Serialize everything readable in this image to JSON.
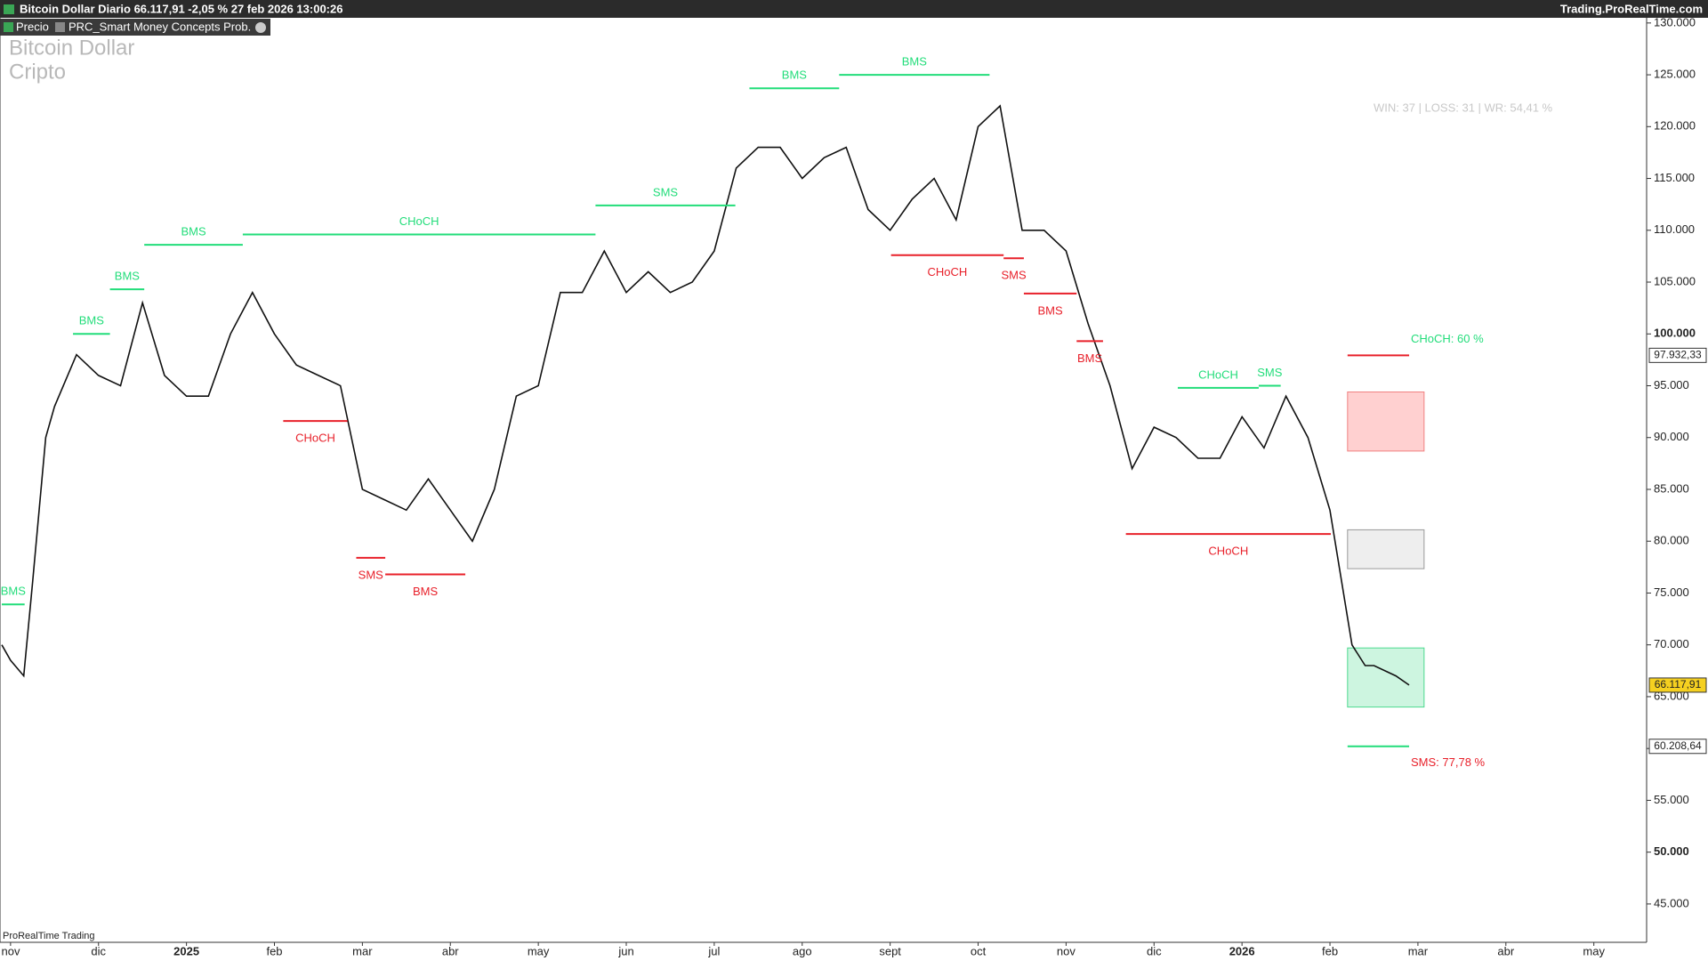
{
  "header": {
    "title": "Bitcoin Dollar Diario 66.117,91 -2,05 % 27 feb 2026 13:00:26",
    "site": "Trading.ProRealTime.com"
  },
  "indicator": "PRC_Smart Money Concepts Prob.",
  "watermark": [
    "Bitcoin Dollar",
    "Cripto"
  ],
  "stats": "WIN: 37  | LOSS: 31  | WR: 54,41 %",
  "footer": "ProRealTime Trading",
  "chart_data": {
    "type": "line",
    "xlim": [
      -0.12,
      18.6
    ],
    "ylim": [
      41300,
      130500
    ],
    "xticks": [
      {
        "value": 0,
        "label": "nov"
      },
      {
        "value": 1,
        "label": "dic"
      },
      {
        "value": 2,
        "label": "2025"
      },
      {
        "value": 3,
        "label": "feb"
      },
      {
        "value": 4,
        "label": "mar"
      },
      {
        "value": 5,
        "label": "abr"
      },
      {
        "value": 6,
        "label": "may"
      },
      {
        "value": 7,
        "label": "jun"
      },
      {
        "value": 8,
        "label": "jul"
      },
      {
        "value": 9,
        "label": "ago"
      },
      {
        "value": 10,
        "label": "sept"
      },
      {
        "value": 11,
        "label": "oct"
      },
      {
        "value": 12,
        "label": "nov"
      },
      {
        "value": 13,
        "label": "dic"
      },
      {
        "value": 14,
        "label": "2026"
      },
      {
        "value": 15,
        "label": "feb"
      },
      {
        "value": 16,
        "label": "mar"
      },
      {
        "value": 17,
        "label": "abr"
      },
      {
        "value": 18,
        "label": "may"
      }
    ],
    "yticks": [
      {
        "value": 45000,
        "label": "45.000"
      },
      {
        "value": 50000,
        "label": "50.000"
      },
      {
        "value": 55000,
        "label": "55.000"
      },
      {
        "value": 60000,
        "label": "60.000"
      },
      {
        "value": 65000,
        "label": "65.000"
      },
      {
        "value": 70000,
        "label": "70.000"
      },
      {
        "value": 75000,
        "label": "75.000"
      },
      {
        "value": 80000,
        "label": "80.000"
      },
      {
        "value": 85000,
        "label": "85.000"
      },
      {
        "value": 90000,
        "label": "90.000"
      },
      {
        "value": 95000,
        "label": "95.000"
      },
      {
        "value": 100000,
        "label": "100.000"
      },
      {
        "value": 105000,
        "label": "105.000"
      },
      {
        "value": 110000,
        "label": "110.000"
      },
      {
        "value": 115000,
        "label": "115.000"
      },
      {
        "value": 120000,
        "label": "120.000"
      },
      {
        "value": 125000,
        "label": "125.000"
      },
      {
        "value": 130000,
        "label": "130.000"
      }
    ],
    "x": [
      -0.1,
      0,
      0.15,
      0.25,
      0.4,
      0.5,
      0.75,
      1,
      1.25,
      1.5,
      1.75,
      2,
      2.25,
      2.5,
      2.75,
      3,
      3.25,
      3.5,
      3.75,
      4,
      4.25,
      4.5,
      4.75,
      5,
      5.25,
      5.5,
      5.75,
      6,
      6.25,
      6.5,
      6.75,
      7,
      7.25,
      7.5,
      7.75,
      8,
      8.25,
      8.5,
      8.75,
      9,
      9.25,
      9.5,
      9.75,
      10,
      10.25,
      10.5,
      10.75,
      11,
      11.25,
      11.5,
      11.75,
      12,
      12.25,
      12.5,
      12.75,
      13,
      13.25,
      13.5,
      13.75,
      14,
      14.25,
      14.5,
      14.75,
      15,
      15.25,
      15.4,
      15.5,
      15.75,
      15.9
    ],
    "series": [
      {
        "name": "Precio",
        "color": "#111111",
        "values": [
          70000,
          68500,
          67000,
          76000,
          90000,
          93000,
          98000,
          96000,
          95000,
          103000,
          96000,
          94000,
          94000,
          100000,
          104000,
          100000,
          97000,
          96000,
          95000,
          85000,
          84000,
          83000,
          86000,
          83000,
          80000,
          85000,
          94000,
          95000,
          104000,
          104000,
          108000,
          104000,
          106000,
          104000,
          105000,
          108000,
          116000,
          118000,
          118000,
          115000,
          117000,
          118000,
          112000,
          110000,
          113000,
          115000,
          111000,
          120000,
          122000,
          110000,
          110000,
          108000,
          101000,
          95000,
          87000,
          91000,
          90000,
          88000,
          88000,
          92000,
          89000,
          94000,
          90000,
          83000,
          70000,
          68000,
          68000,
          67000,
          66117.91
        ]
      }
    ],
    "structures": [
      {
        "label": "BMS",
        "color": "#22dd7a",
        "level": 73900,
        "from": -0.1,
        "to": 0.16
      },
      {
        "label": "BMS",
        "color": "#22dd7a",
        "level": 100000,
        "from": 0.71,
        "to": 1.13
      },
      {
        "label": "BMS",
        "color": "#22dd7a",
        "level": 104300,
        "from": 1.13,
        "to": 1.52
      },
      {
        "label": "BMS",
        "color": "#22dd7a",
        "level": 108600,
        "from": 1.52,
        "to": 2.64
      },
      {
        "label": "CHoCH",
        "color": "#22dd7a",
        "level": 109600,
        "from": 2.64,
        "to": 6.65
      },
      {
        "label": "SMS",
        "color": "#22dd7a",
        "level": 112400,
        "from": 6.65,
        "to": 8.24
      },
      {
        "label": "BMS",
        "color": "#22dd7a",
        "level": 123700,
        "from": 8.4,
        "to": 9.42
      },
      {
        "label": "BMS",
        "color": "#22dd7a",
        "level": 125000,
        "from": 9.42,
        "to": 11.13
      },
      {
        "label": "CHoCH",
        "color": "#22dd7a",
        "level": 94800,
        "from": 13.27,
        "to": 14.19
      },
      {
        "label": "SMS",
        "color": "#22dd7a",
        "level": 95000,
        "from": 14.19,
        "to": 14.44
      },
      {
        "label": "CHoCH",
        "color": "#e8202a",
        "level": 91600,
        "from": 3.1,
        "to": 3.83
      },
      {
        "label": "SMS",
        "color": "#e8202a",
        "level": 78400,
        "from": 3.93,
        "to": 4.26
      },
      {
        "label": "BMS",
        "color": "#e8202a",
        "level": 76800,
        "from": 4.26,
        "to": 5.17
      },
      {
        "label": "CHoCH",
        "color": "#e8202a",
        "level": 107600,
        "from": 10.01,
        "to": 11.29
      },
      {
        "label": "SMS",
        "color": "#e8202a",
        "level": 107300,
        "from": 11.29,
        "to": 11.52
      },
      {
        "label": "BMS",
        "color": "#e8202a",
        "level": 103900,
        "from": 11.52,
        "to": 12.12
      },
      {
        "label": "BMS",
        "color": "#e8202a",
        "level": 99300,
        "from": 12.12,
        "to": 12.42
      },
      {
        "label": "CHoCH",
        "color": "#e8202a",
        "level": 80700,
        "from": 12.68,
        "to": 15.01
      }
    ],
    "targets": [
      {
        "label": "CHoCH: 60 %",
        "line_color": "#e8202a",
        "label_color": "#22dd7a",
        "level": 97932.33,
        "from": 15.2,
        "to": 15.9
      },
      {
        "label": "SMS: 77,78 %",
        "line_color": "#22dd7a",
        "label_color": "#e8202a",
        "level": 60208.64,
        "from": 15.2,
        "to": 15.9
      }
    ],
    "boxes": [
      {
        "top": 94400,
        "bottom": 88700,
        "from": 15.2,
        "to": 16.07,
        "fill": "#ffd0d0",
        "stroke": "#f08080"
      },
      {
        "top": 81100,
        "bottom": 77350,
        "from": 15.2,
        "to": 16.07,
        "fill": "#eeeeee",
        "stroke": "#999999"
      },
      {
        "top": 69700,
        "bottom": 64000,
        "from": 15.2,
        "to": 16.07,
        "fill": "#cdf5e0",
        "stroke": "#4cd98f"
      }
    ],
    "price_tags": [
      {
        "value": 97932.33,
        "label": "97.932,33",
        "color": "#ffffff"
      },
      {
        "value": 66117.91,
        "label": "66.117,91",
        "color": "#f5d020"
      },
      {
        "value": 60208.64,
        "label": "60.208,64",
        "color": "#ffffff"
      }
    ]
  }
}
